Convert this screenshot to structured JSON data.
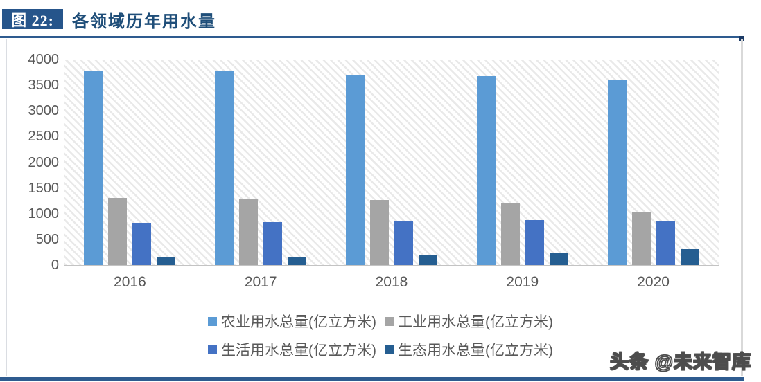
{
  "header": {
    "figure_label": "图 22:",
    "title": "各领域历年用水量"
  },
  "watermark": "头条 @未来智库",
  "colors": {
    "header_box_fill": "#26558B",
    "title_text": "#1F4E79",
    "rule": "#2E5B8F",
    "axis_text": "#595959",
    "axis_line": "#C3C3C3",
    "series": [
      "#5B9BD5",
      "#A5A5A5",
      "#4472C4",
      "#255E91"
    ]
  },
  "chart_data": {
    "type": "bar",
    "title": "各领域历年用水量",
    "categories": [
      "2016",
      "2017",
      "2018",
      "2019",
      "2020"
    ],
    "series": [
      {
        "name": "农业用水总量(亿立方米)",
        "color": "#5B9BD5",
        "values": [
          3768.0,
          3766.4,
          3693.1,
          3682.3,
          3612.4
        ]
      },
      {
        "name": "工业用水总量(亿立方米)",
        "color": "#A5A5A5",
        "values": [
          1308.0,
          1277.0,
          1261.6,
          1217.6,
          1030.4
        ]
      },
      {
        "name": "生活用水总量(亿立方米)",
        "color": "#4472C4",
        "values": [
          821.6,
          838.1,
          859.9,
          871.7,
          863.1
        ]
      },
      {
        "name": "生态用水总量(亿立方米)",
        "color": "#255E91",
        "values": [
          142.6,
          161.9,
          200.9,
          249.3,
          307.0
        ]
      }
    ],
    "xlabel": "",
    "ylabel": "",
    "ylim": [
      0,
      4000
    ],
    "yticks": [
      0,
      500,
      1000,
      1500,
      2000,
      2500,
      3000,
      3500,
      4000
    ],
    "grid": false,
    "plot_background": "diagonal-hatch",
    "legend_position": "bottom",
    "legend_rows": [
      [
        0,
        1
      ],
      [
        2,
        3
      ]
    ]
  }
}
